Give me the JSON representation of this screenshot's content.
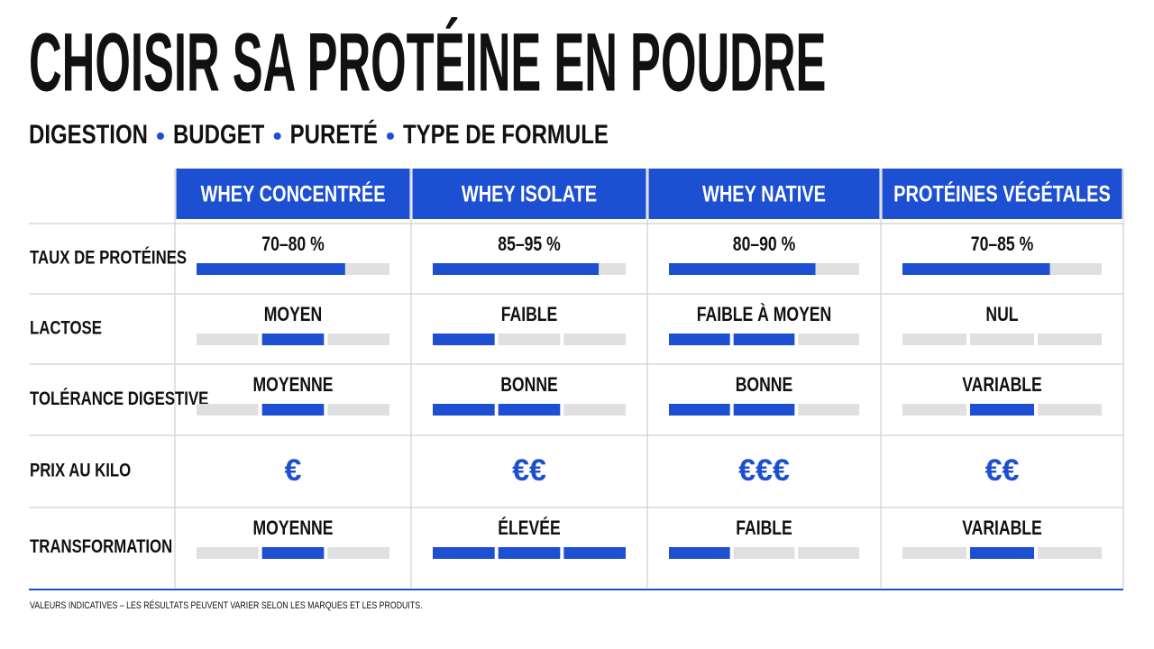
{
  "header": {
    "title": "CHOISIR SA PROTÉINE EN POUDRE",
    "subtitle": [
      "DIGESTION",
      "BUDGET",
      "PURETÉ",
      "TYPE DE FORMULE"
    ]
  },
  "table": {
    "fill_range": [
      0,
      100
    ],
    "columns": [
      "WHEY CONCENTRÉE",
      "WHEY ISOLATE",
      "WHEY NATIVE",
      "PROTÉINES VÉGÉTALES"
    ],
    "rows": [
      {
        "label": "TAUX DE PROTÉINES",
        "cells": [
          {
            "text": "70–80 %",
            "fill": 77
          },
          {
            "text": "85–95 %",
            "fill": 86
          },
          {
            "text": "80–90 %",
            "fill": 77
          },
          {
            "text": "70–85 %",
            "fill": 74
          }
        ]
      },
      {
        "label": "LACTOSE",
        "cells": [
          {
            "text": "MOYEN",
            "segments": [
              0,
              1,
              0
            ]
          },
          {
            "text": "FAIBLE",
            "segments": [
              1,
              0,
              0
            ]
          },
          {
            "text": "FAIBLE À MOYEN",
            "segments": [
              1,
              1,
              0
            ]
          },
          {
            "text": "NUL",
            "segments": [
              0,
              0,
              0
            ]
          }
        ]
      },
      {
        "label": "TOLÉRANCE DIGESTIVE",
        "cells": [
          {
            "text": "MOYENNE",
            "segments": [
              0,
              1,
              0
            ]
          },
          {
            "text": "BONNE",
            "segments": [
              1,
              1,
              0
            ]
          },
          {
            "text": "BONNE",
            "segments": [
              1,
              1,
              0
            ]
          },
          {
            "text": "VARIABLE",
            "segments": [
              0,
              1,
              0
            ]
          }
        ]
      },
      {
        "label": "PRIX AU KILO",
        "cells": [
          {
            "text": "€"
          },
          {
            "text": "€€"
          },
          {
            "text": "€€€"
          },
          {
            "text": "€€"
          }
        ]
      },
      {
        "label": "TRANSFORMATION",
        "cells": [
          {
            "text": "MOYENNE",
            "segments": [
              0,
              1,
              0
            ]
          },
          {
            "text": "ÉLEVÉE",
            "segments": [
              1,
              1,
              1
            ]
          },
          {
            "text": "FAIBLE",
            "segments": [
              1,
              0,
              0
            ]
          },
          {
            "text": "VARIABLE",
            "segments": [
              0,
              1,
              0
            ]
          }
        ]
      }
    ]
  },
  "footnote": "VALEURS INDICATIVES – LES RÉSULTATS PEUVENT VARIER SELON LES MARQUES ET LES PRODUITS."
}
